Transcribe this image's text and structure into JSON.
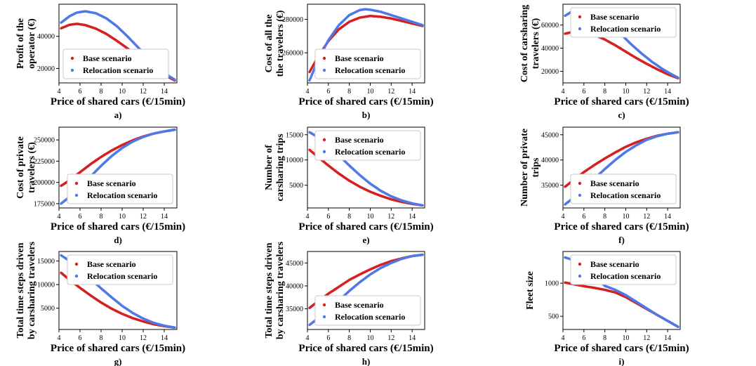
{
  "colors": {
    "base": "#d62020",
    "relocation": "#4f78e8",
    "axis": "#000000",
    "legend_border": "#c8c8c8"
  },
  "chart_data": [
    {
      "type": "scatter",
      "letter": "a)",
      "xlabel": "Price of shared cars (€/15min)",
      "ylabel": [
        "Profit of the",
        "operator (€)"
      ],
      "xlim": [
        4,
        15.2
      ],
      "ylim": [
        11000,
        60000
      ],
      "xticks": [
        4,
        6,
        8,
        10,
        12,
        14
      ],
      "yticks": [
        20000,
        40000
      ],
      "legend": {
        "position": "lower-left",
        "entries": [
          "Base scenario",
          "Relocation scenario"
        ]
      },
      "series": [
        {
          "name": "Base scenario",
          "key": "base",
          "x": [
            4.2,
            5,
            5.7,
            6.5,
            7.5,
            8.5,
            9.5,
            10.5,
            11.5,
            12.5,
            13.5,
            14.5,
            15
          ],
          "y": [
            45000,
            47200,
            47800,
            47000,
            44800,
            41500,
            37200,
            32500,
            27500,
            22700,
            18200,
            14300,
            12500
          ]
        },
        {
          "name": "Relocation scenario",
          "key": "relocation",
          "x": [
            4.2,
            5,
            5.7,
            6.5,
            7.5,
            8.5,
            9.5,
            10.5,
            11.5,
            12.5,
            13.5,
            14.5,
            15
          ],
          "y": [
            48500,
            52500,
            54800,
            55600,
            54400,
            51200,
            46300,
            40000,
            33200,
            26500,
            20300,
            15000,
            13000
          ]
        }
      ]
    },
    {
      "type": "scatter",
      "letter": "b)",
      "xlabel": "Price of shared cars (€/15min)",
      "ylabel": [
        "Cost of all the",
        "the travelers (€)"
      ],
      "xlim": [
        4,
        15.2
      ],
      "ylim": [
        242000,
        289000
      ],
      "xticks": [
        4,
        6,
        8,
        10,
        12,
        14
      ],
      "yticks": [
        260000,
        280000
      ],
      "legend": {
        "position": "lower-right",
        "entries": [
          "Base scenario",
          "Relocation scenario"
        ]
      },
      "series": [
        {
          "name": "Base scenario",
          "key": "base",
          "x": [
            4.2,
            5,
            6,
            7,
            8,
            9,
            10,
            11,
            12,
            13,
            14,
            15
          ],
          "y": [
            248500,
            257500,
            267000,
            274000,
            278500,
            281000,
            282000,
            281500,
            280500,
            279000,
            277500,
            276000
          ]
        },
        {
          "name": "Relocation scenario",
          "key": "relocation",
          "x": [
            4.2,
            5,
            6,
            7,
            8,
            9,
            9.5,
            10,
            11,
            12,
            13,
            14,
            15
          ],
          "y": [
            243500,
            255500,
            267500,
            276500,
            282500,
            285500,
            286000,
            285700,
            284500,
            282500,
            280500,
            278500,
            276500
          ]
        }
      ]
    },
    {
      "type": "scatter",
      "letter": "c)",
      "xlabel": "Price of shared cars (€/15min)",
      "ylabel": [
        "Cost of carsharing",
        "travelers (€)"
      ],
      "xlim": [
        4,
        15.2
      ],
      "ylim": [
        10000,
        78000
      ],
      "xticks": [
        4,
        6,
        8,
        10,
        12,
        14
      ],
      "yticks": [
        20000,
        40000,
        60000
      ],
      "legend": {
        "position": "top-right",
        "entries": [
          "Base scenario",
          "Relocation scenario"
        ]
      },
      "series": [
        {
          "name": "Base scenario",
          "key": "base",
          "x": [
            4.2,
            5,
            5.5,
            6,
            7,
            8,
            9,
            10,
            11,
            12,
            13,
            14,
            15
          ],
          "y": [
            52500,
            54200,
            54500,
            54000,
            51500,
            47500,
            42500,
            37000,
            31500,
            26500,
            21800,
            17500,
            14000
          ]
        },
        {
          "name": "Relocation scenario",
          "key": "relocation",
          "x": [
            4.2,
            5,
            5.8,
            6.5,
            7.5,
            8.5,
            9.5,
            10.5,
            11.5,
            12.5,
            13.5,
            14.5,
            15
          ],
          "y": [
            68000,
            72500,
            74000,
            73000,
            68500,
            61500,
            52500,
            43500,
            35500,
            28300,
            22000,
            16800,
            14500
          ]
        }
      ]
    },
    {
      "type": "scatter",
      "letter": "d)",
      "xlabel": "Price of shared cars (€/15min)",
      "ylabel": [
        "Cost of private",
        "travelers (€)"
      ],
      "xlim": [
        4,
        15.2
      ],
      "ylim": [
        170000,
        265000
      ],
      "xticks": [
        4,
        6,
        8,
        10,
        12,
        14
      ],
      "yticks": [
        175000,
        200000,
        225000,
        250000
      ],
      "legend": {
        "position": "lower-right",
        "entries": [
          "Base scenario",
          "Relocation scenario"
        ]
      },
      "series": [
        {
          "name": "Base scenario",
          "key": "base",
          "x": [
            4.2,
            5,
            6,
            7,
            8,
            9,
            10,
            11,
            12,
            13,
            14,
            15
          ],
          "y": [
            196000,
            202500,
            212000,
            221500,
            230000,
            237500,
            244000,
            249500,
            254000,
            257500,
            260000,
            262000
          ]
        },
        {
          "name": "Relocation scenario",
          "key": "relocation",
          "x": [
            4.2,
            5,
            6,
            7,
            8,
            9,
            10,
            11,
            12,
            13,
            14,
            15
          ],
          "y": [
            175000,
            183000,
            194500,
            207000,
            219500,
            231000,
            240500,
            248000,
            253500,
            257500,
            260000,
            262000
          ]
        }
      ]
    },
    {
      "type": "scatter",
      "letter": "e)",
      "xlabel": "Price of shared cars (€/15min)",
      "ylabel": [
        "Number of",
        "carsharing trips"
      ],
      "xlim": [
        4,
        15.2
      ],
      "ylim": [
        500,
        16500
      ],
      "xticks": [
        4,
        6,
        8,
        10,
        12,
        14
      ],
      "yticks": [
        5000,
        10000,
        15000
      ],
      "legend": {
        "position": "top-right",
        "entries": [
          "Base scenario",
          "Relocation scenario"
        ]
      },
      "series": [
        {
          "name": "Base scenario",
          "key": "base",
          "x": [
            4.2,
            5,
            6,
            7,
            8,
            9,
            10,
            11,
            12,
            13,
            14,
            15
          ],
          "y": [
            12000,
            10600,
            8900,
            7300,
            5900,
            4700,
            3700,
            2900,
            2200,
            1700,
            1300,
            1000
          ]
        },
        {
          "name": "Relocation scenario",
          "key": "relocation",
          "x": [
            4.2,
            5,
            6,
            7,
            8,
            9,
            10,
            11,
            12,
            13,
            14,
            15
          ],
          "y": [
            15500,
            14500,
            12800,
            10900,
            8900,
            7000,
            5300,
            3900,
            2800,
            2000,
            1400,
            1000
          ]
        }
      ]
    },
    {
      "type": "scatter",
      "letter": "f)",
      "xlabel": "Price of shared cars (€/15min)",
      "ylabel": [
        "Number of private",
        "trips"
      ],
      "xlim": [
        4,
        15.2
      ],
      "ylim": [
        30500,
        46500
      ],
      "xticks": [
        4,
        6,
        8,
        10,
        12,
        14
      ],
      "yticks": [
        35000,
        40000,
        45000
      ],
      "legend": {
        "position": "lower-right",
        "entries": [
          "Base scenario",
          "Relocation scenario"
        ]
      },
      "series": [
        {
          "name": "Base scenario",
          "key": "base",
          "x": [
            4.2,
            5,
            6,
            7,
            8,
            9,
            10,
            11,
            12,
            13,
            14,
            15
          ],
          "y": [
            34700,
            36000,
            37600,
            39000,
            40300,
            41500,
            42600,
            43500,
            44200,
            44800,
            45200,
            45500
          ]
        },
        {
          "name": "Relocation scenario",
          "key": "relocation",
          "x": [
            4.2,
            5,
            6,
            7,
            8,
            9,
            10,
            11,
            12,
            13,
            14,
            15
          ],
          "y": [
            31200,
            32500,
            34300,
            36300,
            38200,
            40000,
            41600,
            42900,
            44000,
            44700,
            45200,
            45500
          ]
        }
      ]
    },
    {
      "type": "scatter",
      "letter": "g)",
      "xlabel": "Price of shared cars (€/15min)",
      "ylabel": [
        "Total time steps driven",
        "by carsharing travelers"
      ],
      "xlim": [
        4,
        15.2
      ],
      "ylim": [
        500,
        17000
      ],
      "xticks": [
        4,
        6,
        8,
        10,
        12,
        14
      ],
      "yticks": [
        5000,
        10000,
        15000
      ],
      "legend": {
        "position": "top-right",
        "entries": [
          "Base scenario",
          "Relocation scenario"
        ]
      },
      "series": [
        {
          "name": "Base scenario",
          "key": "base",
          "x": [
            4.2,
            5,
            6,
            7,
            8,
            9,
            10,
            11,
            12,
            13,
            14,
            15
          ],
          "y": [
            12500,
            11000,
            9300,
            7700,
            6200,
            4900,
            3800,
            2900,
            2200,
            1600,
            1200,
            900
          ]
        },
        {
          "name": "Relocation scenario",
          "key": "relocation",
          "x": [
            4.2,
            5,
            6,
            7,
            8,
            9,
            10,
            11,
            12,
            13,
            14,
            15
          ],
          "y": [
            16200,
            15000,
            13200,
            11200,
            9200,
            7300,
            5500,
            4000,
            2800,
            1900,
            1300,
            900
          ]
        }
      ]
    },
    {
      "type": "scatter",
      "letter": "h)",
      "xlabel": "Price of shared cars (€/15min)",
      "ylabel": [
        "Total time steps driven",
        "by carsharing travelers"
      ],
      "xlim": [
        4,
        15.2
      ],
      "ylim": [
        30500,
        47500
      ],
      "xticks": [
        4,
        6,
        8,
        10,
        12,
        14
      ],
      "yticks": [
        35000,
        40000,
        45000
      ],
      "legend": {
        "position": "lower-right",
        "entries": [
          "Base scenario",
          "Relocation scenario"
        ]
      },
      "series": [
        {
          "name": "Base scenario",
          "key": "base",
          "x": [
            4.2,
            5,
            6,
            7,
            8,
            9,
            10,
            11,
            12,
            13,
            14,
            15
          ],
          "y": [
            35200,
            36600,
            38300,
            39800,
            41300,
            42500,
            43600,
            44600,
            45400,
            46000,
            46500,
            46800
          ]
        },
        {
          "name": "Relocation scenario",
          "key": "relocation",
          "x": [
            4.2,
            5,
            6,
            7,
            8,
            9,
            10,
            11,
            12,
            13,
            14,
            15
          ],
          "y": [
            31500,
            32900,
            34800,
            36800,
            38900,
            40800,
            42500,
            43900,
            45000,
            45900,
            46500,
            46800
          ]
        }
      ]
    },
    {
      "type": "scatter",
      "letter": "i)",
      "xlabel": "Price of shared cars (€/15min)",
      "ylabel": [
        "Fleet size"
      ],
      "xlim": [
        4,
        15.2
      ],
      "ylim": [
        300,
        1480
      ],
      "xticks": [
        4,
        6,
        8,
        10,
        12,
        14
      ],
      "yticks": [
        500,
        1000
      ],
      "legend": {
        "position": "top-right",
        "entries": [
          "Base scenario",
          "Relocation scenario"
        ]
      },
      "series": [
        {
          "name": "Base scenario",
          "key": "base",
          "x": [
            4.2,
            5,
            6,
            7,
            8,
            9,
            10,
            11,
            12,
            13,
            14,
            15
          ],
          "y": [
            1010,
            985,
            955,
            930,
            900,
            860,
            790,
            700,
            610,
            520,
            430,
            340
          ]
        },
        {
          "name": "Relocation scenario",
          "key": "relocation",
          "x": [
            4.2,
            5,
            5.5,
            6,
            6.5,
            7,
            8,
            9,
            10,
            11,
            12,
            13,
            14,
            15
          ],
          "y": [
            1390,
            1350,
            1310,
            1270,
            1200,
            1100,
            960,
            900,
            820,
            720,
            620,
            520,
            430,
            340
          ]
        }
      ]
    }
  ]
}
